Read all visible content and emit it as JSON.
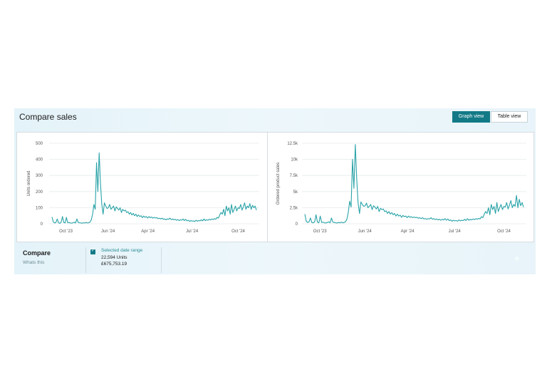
{
  "header": {
    "title": "Compare sales"
  },
  "view_tabs": {
    "graph_label": "Graph view",
    "table_label": "Table view",
    "active": "graph"
  },
  "compare": {
    "title": "Compare",
    "link": "Whats this",
    "selected": {
      "checked": true,
      "label": "Selected date range",
      "units": "22,594 Units",
      "sales": "£675,753.19"
    }
  },
  "colors": {
    "series": "#2aa3a8",
    "accent": "#127a86"
  },
  "chart_data": [
    {
      "type": "line",
      "title": "",
      "xlabel": "",
      "ylabel": "Units ordered",
      "ylim": [
        0,
        500
      ],
      "y_ticks": [
        "0",
        "100",
        "200",
        "300",
        "400",
        "500"
      ],
      "y_tick_values": [
        0,
        100,
        200,
        300,
        400,
        500
      ],
      "x_ticks": [
        {
          "label": "Oct '23",
          "x": 0.08
        },
        {
          "label": "Jun '24",
          "x": 0.28
        },
        {
          "label": "Apr '24",
          "x": 0.47
        },
        {
          "label": "Jul '24",
          "x": 0.68
        },
        {
          "label": "Oct '24",
          "x": 0.9
        }
      ],
      "grid": true,
      "series": [
        {
          "values": [
            42,
            12,
            5,
            8,
            30,
            6,
            3,
            10,
            45,
            8,
            5,
            40,
            6,
            8,
            5,
            4,
            6,
            10,
            5,
            30,
            8,
            6,
            5,
            4,
            6,
            5,
            8,
            5,
            6,
            10,
            25,
            60,
            120,
            90,
            380,
            200,
            440,
            250,
            120,
            60,
            130,
            110,
            95,
            100,
            120,
            90,
            100,
            110,
            80,
            105,
            95,
            85,
            100,
            70,
            90,
            80,
            85,
            70,
            75,
            60,
            70,
            55,
            65,
            50,
            60,
            45,
            55,
            45,
            50,
            38,
            48,
            40,
            45,
            35,
            45,
            38,
            42,
            35,
            40,
            36,
            38,
            32,
            35,
            30,
            35,
            28,
            30,
            25,
            30,
            28,
            35,
            26,
            30,
            25,
            28,
            22,
            26,
            20,
            25,
            22,
            30,
            20,
            28,
            18,
            22,
            15,
            20,
            16,
            18,
            14,
            22,
            16,
            20,
            18,
            25,
            18,
            30,
            20,
            25,
            22,
            28,
            24,
            30,
            26,
            32,
            28,
            40,
            35,
            55,
            70,
            60,
            90,
            50,
            110,
            80,
            100,
            60,
            120,
            70,
            90,
            110,
            80,
            100,
            95,
            120,
            85,
            105,
            130,
            90,
            110,
            100,
            125,
            90,
            115,
            100,
            110,
            85
          ]
        }
      ]
    },
    {
      "type": "line",
      "title": "",
      "xlabel": "",
      "ylabel": "Ordered product sales",
      "ylim": [
        0,
        12500
      ],
      "y_ticks": [
        "0",
        "2.5k",
        "5k",
        "7.5k",
        "10k",
        "12.5k"
      ],
      "y_tick_values": [
        0,
        2500,
        5000,
        7500,
        10000,
        12500
      ],
      "x_ticks": [
        {
          "label": "Oct '23",
          "x": 0.08
        },
        {
          "label": "Jun '24",
          "x": 0.28
        },
        {
          "label": "Apr '24",
          "x": 0.47
        },
        {
          "label": "Jul '24",
          "x": 0.68
        },
        {
          "label": "Oct '24",
          "x": 0.9
        }
      ],
      "grid": true,
      "series": [
        {
          "values": [
            1500,
            400,
            200,
            300,
            900,
            200,
            150,
            300,
            1400,
            250,
            150,
            1200,
            200,
            250,
            150,
            120,
            200,
            300,
            150,
            900,
            250,
            200,
            150,
            120,
            200,
            150,
            250,
            150,
            200,
            300,
            700,
            1800,
            3500,
            2600,
            10000,
            5500,
            12300,
            7000,
            3200,
            1600,
            3400,
            3000,
            2700,
            2800,
            3200,
            2500,
            2700,
            3000,
            2200,
            2800,
            2600,
            2300,
            2700,
            1900,
            2400,
            2200,
            2300,
            1900,
            2000,
            1600,
            1900,
            1500,
            1750,
            1400,
            1600,
            1200,
            1500,
            1200,
            1350,
            1000,
            1300,
            1100,
            1200,
            950,
            1200,
            1000,
            1100,
            950,
            1050,
            950,
            1000,
            850,
            950,
            800,
            950,
            750,
            800,
            700,
            800,
            750,
            950,
            700,
            800,
            650,
            750,
            600,
            700,
            550,
            700,
            600,
            800,
            550,
            750,
            500,
            600,
            400,
            550,
            450,
            500,
            400,
            600,
            450,
            550,
            500,
            700,
            500,
            800,
            550,
            700,
            600,
            750,
            650,
            800,
            700,
            850,
            750,
            1100,
            950,
            1500,
            1900,
            1600,
            2500,
            1400,
            3000,
            2200,
            2700,
            1600,
            3300,
            1900,
            2500,
            3000,
            2200,
            2700,
            2600,
            3300,
            2300,
            2900,
            3600,
            2500,
            3000,
            2700,
            4400,
            2500,
            3800,
            2800,
            3300,
            2600
          ]
        }
      ]
    }
  ]
}
